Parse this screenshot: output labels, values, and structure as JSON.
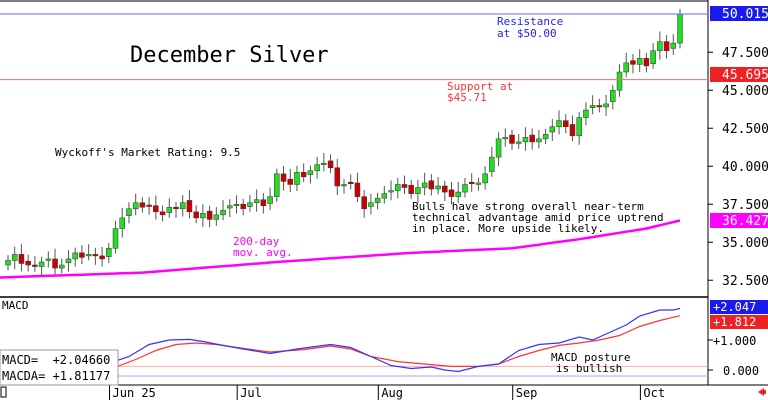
{
  "chart_data": {
    "type": "candlestick",
    "title": "December Silver",
    "rating": "Wyckoff's Market Rating: 9.5",
    "price_axis": {
      "ylim": [
        31.3,
        50.9
      ],
      "ticks": [
        "50.015",
        "47.500",
        "45.000",
        "42.500",
        "40.000",
        "37.500",
        "35.000",
        "32.500"
      ]
    },
    "x_labels": [
      {
        "label": "Jun 25",
        "index": 16
      },
      {
        "label": "Jul",
        "index": 35
      },
      {
        "label": "Aug",
        "index": 56
      },
      {
        "label": "Sep",
        "index": 76
      },
      {
        "label": "Oct",
        "index": 95
      }
    ],
    "close": [
      33.8,
      34.2,
      33.6,
      33.5,
      33.4,
      33.7,
      33.9,
      33.3,
      33.5,
      33.9,
      34.3,
      34.0,
      34.2,
      34.1,
      33.9,
      34.6,
      35.9,
      36.6,
      37.2,
      37.6,
      37.3,
      37.4,
      37.0,
      36.8,
      37.3,
      37.2,
      37.6,
      37.0,
      36.6,
      36.9,
      36.5,
      36.8,
      37.1,
      37.4,
      37.5,
      37.2,
      37.6,
      37.8,
      37.4,
      38.0,
      39.5,
      39.0,
      38.8,
      39.6,
      39.3,
      39.7,
      40.1,
      40.2,
      39.9,
      38.7,
      38.8,
      38.9,
      38.0,
      37.2,
      37.6,
      37.9,
      38.2,
      38.4,
      38.8,
      38.6,
      38.2,
      38.6,
      38.9,
      38.5,
      38.7,
      38.3,
      38.0,
      38.3,
      38.8,
      38.9,
      38.9,
      39.5,
      40.6,
      41.8,
      41.9,
      41.5,
      41.6,
      41.9,
      41.6,
      41.8,
      42.1,
      42.6,
      43.0,
      42.6,
      42.0,
      43.2,
      43.7,
      44.0,
      43.9,
      44.1,
      45.0,
      46.2,
      46.8,
      46.7,
      47.1,
      46.6,
      47.6,
      48.2,
      47.6,
      48.1,
      50.0
    ],
    "ma200": [
      [
        0,
        32.7
      ],
      [
        20,
        33.0
      ],
      [
        40,
        33.7
      ],
      [
        60,
        34.3
      ],
      [
        75,
        34.6
      ],
      [
        85,
        35.2
      ],
      [
        95,
        35.9
      ],
      [
        100,
        36.43
      ]
    ],
    "annotations": {
      "resistance": {
        "label_line1": "Resistance",
        "label_line2": "at $50.00",
        "value": "50.015",
        "level": 50.015
      },
      "support": {
        "label_line1": "Support at",
        "label_line2": "$45.71",
        "value": "45.695",
        "level": 45.695
      },
      "ma": {
        "label_line1": "200-day",
        "label_line2": "mov. avg.",
        "value": "36.427"
      },
      "comment": [
        "Bulls have strong overall near-term",
        "technical advantage amid price uptrend",
        "in place. More upside likely."
      ]
    },
    "macd": {
      "title": "MACD",
      "ylim": [
        -0.4,
        2.3
      ],
      "ticks": [
        "+1.000",
        "0.000"
      ],
      "macd_label": "MACD=  +2.04660",
      "macda_label": "MACDA= +1.81177",
      "macd_value": "+2.047",
      "macda_value": "+1.812",
      "note": [
        "MACD posture",
        "is bullish"
      ],
      "macd_line": [
        [
          16,
          0.3
        ],
        [
          18,
          0.45
        ],
        [
          21,
          0.85
        ],
        [
          24,
          1.0
        ],
        [
          27,
          1.02
        ],
        [
          29,
          0.95
        ],
        [
          32,
          0.82
        ],
        [
          35,
          0.7
        ],
        [
          39,
          0.55
        ],
        [
          43,
          0.7
        ],
        [
          48,
          0.85
        ],
        [
          51,
          0.75
        ],
        [
          54,
          0.45
        ],
        [
          57,
          0.15
        ],
        [
          60,
          0.05
        ],
        [
          63,
          0.1
        ],
        [
          65,
          0.0
        ],
        [
          67,
          -0.05
        ],
        [
          70,
          0.12
        ],
        [
          73,
          0.2
        ],
        [
          76,
          0.65
        ],
        [
          79,
          0.85
        ],
        [
          82,
          0.9
        ],
        [
          85,
          1.1
        ],
        [
          87,
          1.0
        ],
        [
          89,
          1.2
        ],
        [
          92,
          1.5
        ],
        [
          94,
          1.8
        ],
        [
          97,
          2.0
        ],
        [
          99,
          2.0
        ],
        [
          100,
          2.05
        ]
      ],
      "macda_line": [
        [
          16,
          0.1
        ],
        [
          19,
          0.35
        ],
        [
          22,
          0.65
        ],
        [
          25,
          0.85
        ],
        [
          28,
          0.9
        ],
        [
          31,
          0.85
        ],
        [
          35,
          0.72
        ],
        [
          39,
          0.6
        ],
        [
          44,
          0.68
        ],
        [
          48,
          0.8
        ],
        [
          51,
          0.7
        ],
        [
          54,
          0.45
        ],
        [
          58,
          0.28
        ],
        [
          62,
          0.2
        ],
        [
          66,
          0.12
        ],
        [
          70,
          0.12
        ],
        [
          73,
          0.2
        ],
        [
          76,
          0.45
        ],
        [
          79,
          0.65
        ],
        [
          82,
          0.82
        ],
        [
          85,
          0.9
        ],
        [
          88,
          1.0
        ],
        [
          91,
          1.15
        ],
        [
          94,
          1.45
        ],
        [
          97,
          1.65
        ],
        [
          100,
          1.81
        ]
      ]
    },
    "colors": {
      "up": "#22dd22",
      "down": "#cc0000",
      "ma": "#ff00ff",
      "resistance": "#3333ff",
      "support": "#ff4444",
      "macd": "#3333ff",
      "macda": "#ff3333"
    }
  }
}
